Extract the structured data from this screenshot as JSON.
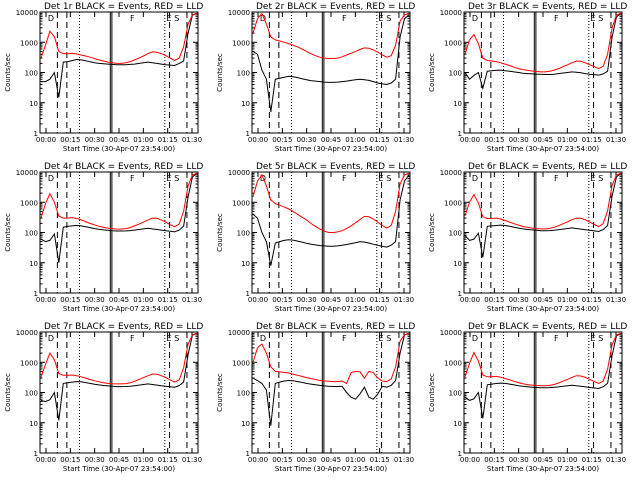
{
  "chart_data": [
    {
      "type": "line",
      "title": "Det 1r BLACK = Events, RED = LLD",
      "xlabel": "Start Time (30-Apr-07 23:54:00)",
      "ylabel": "Counts/sec",
      "yscale": "log",
      "ylim": [
        1,
        10000
      ],
      "x_ticks": [
        "00:00",
        "00:15",
        "00:30",
        "00:45",
        "01:00",
        "01:15",
        "01:30"
      ],
      "y_ticks": [
        "1",
        "10",
        "100",
        "1000",
        "10000"
      ],
      "markers": [
        "D",
        "F",
        "E",
        "S"
      ],
      "series": [
        {
          "name": "Events",
          "color": "#000000",
          "values": [
            50,
            50,
            60,
            100,
            15,
            220,
            230,
            250,
            270,
            260,
            245,
            225,
            210,
            200,
            195,
            190,
            185,
            180,
            180,
            180,
            185,
            190,
            200,
            210,
            220,
            210,
            200,
            190,
            180,
            175,
            170,
            200,
            240,
            2000,
            8000,
            9000
          ]
        },
        {
          "name": "LLD",
          "color": "#ff0000",
          "values": [
            300,
            800,
            2300,
            1500,
            500,
            420,
            420,
            430,
            410,
            380,
            350,
            320,
            290,
            260,
            240,
            220,
            210,
            200,
            200,
            210,
            230,
            260,
            300,
            350,
            420,
            480,
            470,
            420,
            360,
            300,
            250,
            300,
            700,
            4000,
            8000,
            9000
          ]
        }
      ]
    },
    {
      "type": "line",
      "title": "Det 2r BLACK = Events, RED = LLD",
      "xlabel": "Start Time (30-Apr-07 23:54:00)",
      "ylabel": "Counts/sec",
      "yscale": "log",
      "ylim": [
        1,
        10000
      ],
      "x_ticks": [
        "00:00",
        "00:15",
        "00:30",
        "00:45",
        "01:00",
        "01:15",
        "01:30"
      ],
      "y_ticks": [
        "1",
        "10",
        "100",
        "1000",
        "10000"
      ],
      "markers": [
        "D",
        "F",
        "E",
        "S"
      ],
      "series": [
        {
          "name": "Events",
          "color": "#000000",
          "values": [
            500,
            400,
            120,
            60,
            5,
            60,
            65,
            70,
            75,
            72,
            68,
            62,
            58,
            54,
            52,
            50,
            48,
            47,
            47,
            48,
            50,
            52,
            55,
            58,
            60,
            58,
            55,
            50,
            45,
            42,
            40,
            45,
            60,
            1500,
            6000,
            8000
          ]
        },
        {
          "name": "LLD",
          "color": "#ff0000",
          "values": [
            2000,
            6000,
            9000,
            4000,
            1500,
            1200,
            1100,
            1000,
            900,
            800,
            700,
            600,
            500,
            420,
            360,
            320,
            300,
            290,
            290,
            300,
            330,
            380,
            430,
            500,
            580,
            650,
            630,
            560,
            470,
            380,
            320,
            360,
            800,
            5000,
            8000,
            9000
          ]
        }
      ]
    },
    {
      "type": "line",
      "title": "Det 3r BLACK = Events, RED = LLD",
      "xlabel": "Start Time (30-Apr-07 23:54:00)",
      "ylabel": "Counts/sec",
      "yscale": "log",
      "ylim": [
        1,
        10000
      ],
      "x_ticks": [
        "00:00",
        "00:15",
        "00:30",
        "00:45",
        "01:00",
        "01:15",
        "01:30"
      ],
      "y_ticks": [
        "1",
        "10",
        "100",
        "1000",
        "10000"
      ],
      "markers": [
        "D",
        "F",
        "E",
        "S"
      ],
      "series": [
        {
          "name": "Events",
          "color": "#000000",
          "values": [
            100,
            60,
            80,
            100,
            30,
            110,
            115,
            118,
            120,
            115,
            110,
            105,
            100,
            95,
            92,
            90,
            88,
            87,
            86,
            86,
            88,
            92,
            96,
            100,
            105,
            102,
            98,
            92,
            88,
            85,
            82,
            90,
            110,
            1500,
            7000,
            9000
          ]
        },
        {
          "name": "LLD",
          "color": "#ff0000",
          "values": [
            400,
            1200,
            1800,
            900,
            300,
            250,
            240,
            230,
            210,
            190,
            170,
            150,
            135,
            125,
            118,
            112,
            108,
            105,
            105,
            110,
            120,
            135,
            155,
            180,
            210,
            240,
            235,
            210,
            180,
            155,
            135,
            160,
            400,
            3000,
            8000,
            9000
          ]
        }
      ]
    },
    {
      "type": "line",
      "title": "Det 4r BLACK = Events, RED = LLD",
      "xlabel": "Start Time (30-Apr-07 23:54:00)",
      "ylabel": "Counts/sec",
      "yscale": "log",
      "ylim": [
        1,
        10000
      ],
      "x_ticks": [
        "00:00",
        "00:15",
        "00:30",
        "00:45",
        "01:00",
        "01:15",
        "01:30"
      ],
      "y_ticks": [
        "1",
        "10",
        "100",
        "1000",
        "10000"
      ],
      "markers": [
        "D",
        "F",
        "E",
        "S"
      ],
      "series": [
        {
          "name": "Events",
          "color": "#000000",
          "values": [
            60,
            50,
            55,
            90,
            10,
            150,
            160,
            165,
            170,
            165,
            155,
            145,
            135,
            128,
            122,
            118,
            115,
            112,
            112,
            113,
            116,
            120,
            126,
            132,
            138,
            132,
            126,
            120,
            114,
            110,
            105,
            120,
            160,
            1500,
            7000,
            9000
          ]
        },
        {
          "name": "LLD",
          "color": "#ff0000",
          "values": [
            300,
            900,
            1900,
            1000,
            350,
            300,
            300,
            310,
            290,
            260,
            230,
            200,
            180,
            160,
            150,
            140,
            135,
            130,
            130,
            135,
            145,
            165,
            190,
            220,
            260,
            300,
            295,
            260,
            220,
            180,
            155,
            190,
            500,
            3500,
            8000,
            9000
          ]
        }
      ]
    },
    {
      "type": "line",
      "title": "Det 5r BLACK = Events, RED = LLD",
      "xlabel": "Start Time (30-Apr-07 23:54:00)",
      "ylabel": "Counts/sec",
      "yscale": "log",
      "ylim": [
        1,
        10000
      ],
      "x_ticks": [
        "00:00",
        "00:15",
        "00:30",
        "00:45",
        "01:00",
        "01:15",
        "01:30"
      ],
      "y_ticks": [
        "1",
        "10",
        "100",
        "1000",
        "10000"
      ],
      "markers": [
        "D",
        "F",
        "E",
        "S"
      ],
      "series": [
        {
          "name": "Events",
          "color": "#000000",
          "values": [
            400,
            300,
            100,
            50,
            8,
            45,
            50,
            55,
            58,
            56,
            52,
            48,
            44,
            41,
            39,
            37,
            36,
            35,
            35,
            36,
            38,
            40,
            43,
            46,
            50,
            48,
            45,
            41,
            38,
            35,
            33,
            38,
            50,
            1200,
            5000,
            8000
          ]
        },
        {
          "name": "LLD",
          "color": "#ff0000",
          "values": [
            1500,
            5000,
            8000,
            3500,
            1200,
            900,
            800,
            700,
            600,
            500,
            400,
            320,
            260,
            200,
            160,
            130,
            110,
            100,
            100,
            105,
            115,
            135,
            165,
            210,
            270,
            340,
            330,
            280,
            220,
            170,
            140,
            170,
            500,
            4000,
            8000,
            9000
          ]
        }
      ]
    },
    {
      "type": "line",
      "title": "Det 6r BLACK = Events, RED = LLD",
      "xlabel": "Start Time (30-Apr-07 23:54:00)",
      "ylabel": "Counts/sec",
      "yscale": "log",
      "ylim": [
        1,
        10000
      ],
      "x_ticks": [
        "00:00",
        "00:15",
        "00:30",
        "00:45",
        "01:00",
        "01:15",
        "01:30"
      ],
      "y_ticks": [
        "1",
        "10",
        "100",
        "1000",
        "10000"
      ],
      "markers": [
        "D",
        "F",
        "E",
        "S"
      ],
      "series": [
        {
          "name": "Events",
          "color": "#000000",
          "values": [
            80,
            55,
            60,
            95,
            15,
            160,
            165,
            170,
            175,
            170,
            160,
            150,
            140,
            132,
            126,
            122,
            118,
            115,
            115,
            116,
            119,
            124,
            130,
            136,
            142,
            136,
            130,
            124,
            118,
            113,
            108,
            125,
            170,
            1600,
            7000,
            9000
          ]
        },
        {
          "name": "LLD",
          "color": "#ff0000",
          "values": [
            350,
            1000,
            1800,
            950,
            330,
            290,
            290,
            300,
            280,
            250,
            220,
            195,
            175,
            158,
            148,
            140,
            135,
            132,
            132,
            137,
            148,
            168,
            195,
            225,
            265,
            300,
            295,
            262,
            222,
            184,
            158,
            195,
            520,
            3600,
            8000,
            9000
          ]
        }
      ]
    },
    {
      "type": "line",
      "title": "Det 7r BLACK = Events, RED = LLD",
      "xlabel": "Start Time (30-Apr-07 23:54:00)",
      "ylabel": "Counts/sec",
      "yscale": "log",
      "ylim": [
        1,
        10000
      ],
      "x_ticks": [
        "00:00",
        "00:15",
        "00:30",
        "00:45",
        "01:00",
        "01:15",
        "01:30"
      ],
      "y_ticks": [
        "1",
        "10",
        "100",
        "1000",
        "10000"
      ],
      "markers": [
        "D",
        "F",
        "E",
        "S"
      ],
      "series": [
        {
          "name": "Events",
          "color": "#000000",
          "values": [
            55,
            50,
            58,
            100,
            12,
            200,
            210,
            220,
            230,
            225,
            212,
            200,
            188,
            178,
            170,
            165,
            160,
            157,
            157,
            158,
            162,
            168,
            176,
            184,
            192,
            184,
            176,
            168,
            160,
            155,
            150,
            170,
            220,
            1800,
            8000,
            9000
          ]
        },
        {
          "name": "LLD",
          "color": "#ff0000",
          "values": [
            320,
            850,
            2000,
            1200,
            420,
            370,
            370,
            380,
            360,
            330,
            300,
            270,
            245,
            225,
            210,
            200,
            195,
            192,
            192,
            197,
            210,
            235,
            270,
            310,
            360,
            410,
            400,
            360,
            310,
            260,
            220,
            260,
            650,
            4000,
            8000,
            9000
          ]
        }
      ]
    },
    {
      "type": "line",
      "title": "Det 8r BLACK = Events, RED = LLD",
      "xlabel": "Start Time (30-Apr-07 23:54:00)",
      "ylabel": "Counts/sec",
      "yscale": "log",
      "ylim": [
        1,
        10000
      ],
      "x_ticks": [
        "00:00",
        "00:15",
        "00:30",
        "00:45",
        "01:00",
        "01:15",
        "01:30"
      ],
      "y_ticks": [
        "1",
        "10",
        "100",
        "1000",
        "10000"
      ],
      "markers": [
        "D",
        "F",
        "E",
        "S"
      ],
      "series": [
        {
          "name": "Events",
          "color": "#000000",
          "values": [
            300,
            250,
            200,
            120,
            8,
            200,
            220,
            240,
            250,
            245,
            230,
            215,
            200,
            190,
            180,
            172,
            165,
            160,
            158,
            158,
            160,
            100,
            70,
            60,
            90,
            150,
            70,
            60,
            90,
            160,
            150,
            170,
            250,
            2000,
            8000,
            9000
          ]
        },
        {
          "name": "LLD",
          "color": "#ff0000",
          "values": [
            1000,
            3000,
            4000,
            2000,
            700,
            500,
            480,
            460,
            440,
            400,
            370,
            340,
            310,
            290,
            270,
            250,
            240,
            235,
            230,
            230,
            240,
            200,
            450,
            500,
            480,
            300,
            500,
            450,
            300,
            240,
            230,
            280,
            700,
            5000,
            8000,
            9000
          ]
        }
      ]
    },
    {
      "type": "line",
      "title": "Det 9r BLACK = Events, RED = LLD",
      "xlabel": "Start Time (30-Apr-07 23:54:00)",
      "ylabel": "Counts/sec",
      "yscale": "log",
      "ylim": [
        1,
        10000
      ],
      "x_ticks": [
        "00:00",
        "00:15",
        "00:30",
        "00:45",
        "01:00",
        "01:15",
        "01:30"
      ],
      "y_ticks": [
        "1",
        "10",
        "100",
        "1000",
        "10000"
      ],
      "markers": [
        "D",
        "F",
        "E",
        "S"
      ],
      "series": [
        {
          "name": "Events",
          "color": "#000000",
          "values": [
            70,
            55,
            62,
            100,
            14,
            180,
            190,
            198,
            205,
            200,
            190,
            178,
            168,
            160,
            154,
            150,
            146,
            143,
            143,
            145,
            148,
            153,
            160,
            167,
            174,
            167,
            160,
            153,
            146,
            141,
            136,
            155,
            200,
            1700,
            7500,
            9000
          ]
        },
        {
          "name": "LLD",
          "color": "#ff0000",
          "values": [
            330,
            900,
            2100,
            1100,
            380,
            330,
            330,
            340,
            320,
            290,
            260,
            235,
            212,
            195,
            183,
            175,
            170,
            167,
            167,
            172,
            184,
            206,
            236,
            272,
            318,
            360,
            352,
            316,
            272,
            230,
            198,
            238,
            600,
            3800,
            8000,
            9000
          ]
        }
      ]
    }
  ]
}
